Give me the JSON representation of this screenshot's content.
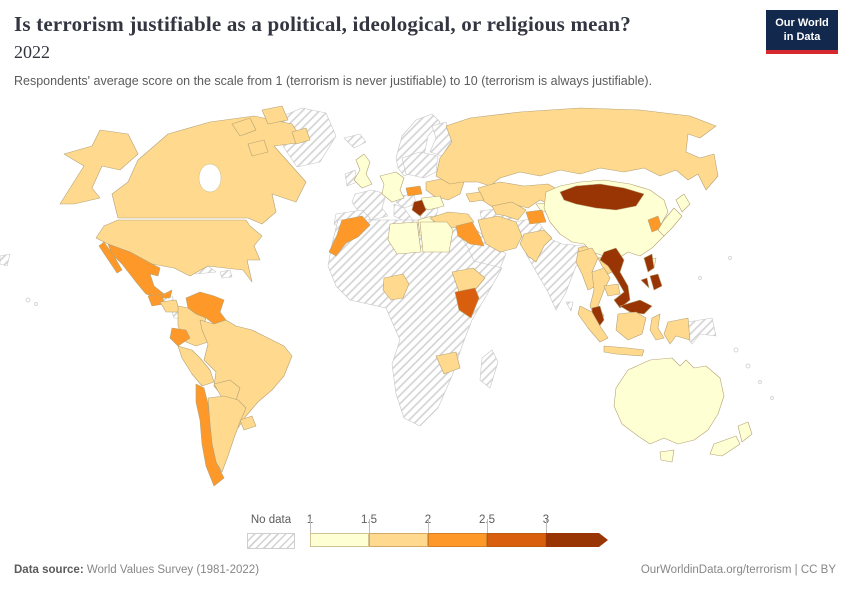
{
  "header": {
    "title": "Is terrorism justifiable as a political, ideological, or religious mean?",
    "year": "2022",
    "subtitle": "Respondents' average score on the scale from 1 (terrorism is never justifiable) to 10 (terrorism is always justifiable)."
  },
  "logo": {
    "line1": "Our World",
    "line2": "in Data",
    "bg": "#12294d",
    "accent": "#d8282f"
  },
  "footer": {
    "datasource_label": "Data source:",
    "datasource_value": " World Values Survey (1981-2022)",
    "right": "OurWorldinData.org/terrorism | CC BY"
  },
  "chart_data": {
    "type": "choropleth",
    "title": "Is terrorism justifiable as a political, ideological, or religious mean?",
    "year": "2022",
    "scale_note": "average score, 1 = never justifiable, 10 = always justifiable",
    "legend": {
      "no_data_label": "No data",
      "ticks": [
        "1",
        "1.5",
        "2",
        "2.5",
        "3"
      ],
      "position": "bottom"
    },
    "bins": [
      {
        "tick": "1",
        "range": "1 to 1.5",
        "color": "#FFFFD4"
      },
      {
        "tick": "1.5",
        "range": "1.5 to 2",
        "color": "#FED98E"
      },
      {
        "tick": "2",
        "range": "2 to 2.5",
        "color": "#FE9929"
      },
      {
        "tick": "2.5",
        "range": "2.5 to 3",
        "color": "#D95F0E"
      },
      {
        "tick": "3",
        "range": "3 and above",
        "color": "#993404"
      }
    ],
    "palette": {
      "1-1.5": "#FFFFD4",
      "1.5-2": "#FED98E",
      "2-2.5": "#FE9929",
      "2.5-3": "#D95F0E",
      "3+": "#993404"
    },
    "countries": {
      "canada": "1.5-2",
      "united-states": "1.5-2",
      "greenland": "no-data",
      "mexico": "2-2.5",
      "guatemala": "2-2.5",
      "honduras": "no-data",
      "nicaragua": "1.5-2",
      "panama": "no-data",
      "cuba": "no-data",
      "hispaniola": "no-data",
      "venezuela": "2-2.5",
      "colombia": "1.5-2",
      "ecuador": "2-2.5",
      "peru": "1.5-2",
      "brazil": "1.5-2",
      "bolivia": "1.5-2",
      "paraguay": "no-data",
      "chile": "2-2.5",
      "argentina": "1.5-2",
      "uruguay": "1.5-2",
      "iceland": "no-data",
      "ireland": "no-data",
      "united-kingdom": "1-1.5",
      "france": "no-data",
      "spain-portugal": "no-data",
      "italy": "no-data",
      "scandinavia": "no-data",
      "germany": "1-1.5",
      "poland-baltics": "no-data",
      "hungary-croatia": "no-data",
      "bulgaria-albania": "no-data",
      "slovakia": "2-2.5",
      "ukraine": "1.5-2",
      "romania": "1-1.5",
      "serbia": "3+",
      "greece": "1-1.5",
      "russia": "1.5-2",
      "kazakhstan": "1.5-2",
      "caucasus": "1.5-2",
      "turkey": "1.5-2",
      "syria-jordan": "no-data",
      "iraq": "2-2.5",
      "saudi-arabia": "no-data",
      "iran": "1.5-2",
      "turkmenistan": "no-data",
      "uzbekistan": "1.5-2",
      "kyrgyzstan": "1-1.5",
      "tajikistan": "2-2.5",
      "afghanistan": "no-data",
      "pakistan": "1.5-2",
      "india": "no-data",
      "sri-lanka": "no-data",
      "bangladesh": "1.5-2",
      "china": "1-1.5",
      "mongolia": "3+",
      "north-korea": "no-data",
      "south-korea": "2-2.5",
      "japan": "1-1.5",
      "taiwan": "1-1.5",
      "myanmar": "1.5-2",
      "thailand": "1.5-2",
      "laos": "1.5-2",
      "cambodia": "1.5-2",
      "vietnam": "3+",
      "malaysia": "3+",
      "philippines": "3+",
      "indonesia": "1.5-2",
      "papua-new-guinea": "no-data",
      "morocco": "2-2.5",
      "africa-other": "no-data",
      "libya": "1-1.5",
      "egypt": "1-1.5",
      "nigeria": "1.5-2",
      "ethiopia": "1.5-2",
      "kenya": "2.5-3",
      "zimbabwe": "1.5-2",
      "madagascar": "no-data",
      "map-edge-fragment": "no-data",
      "australia": "1-1.5",
      "new-zealand": "1-1.5"
    }
  }
}
